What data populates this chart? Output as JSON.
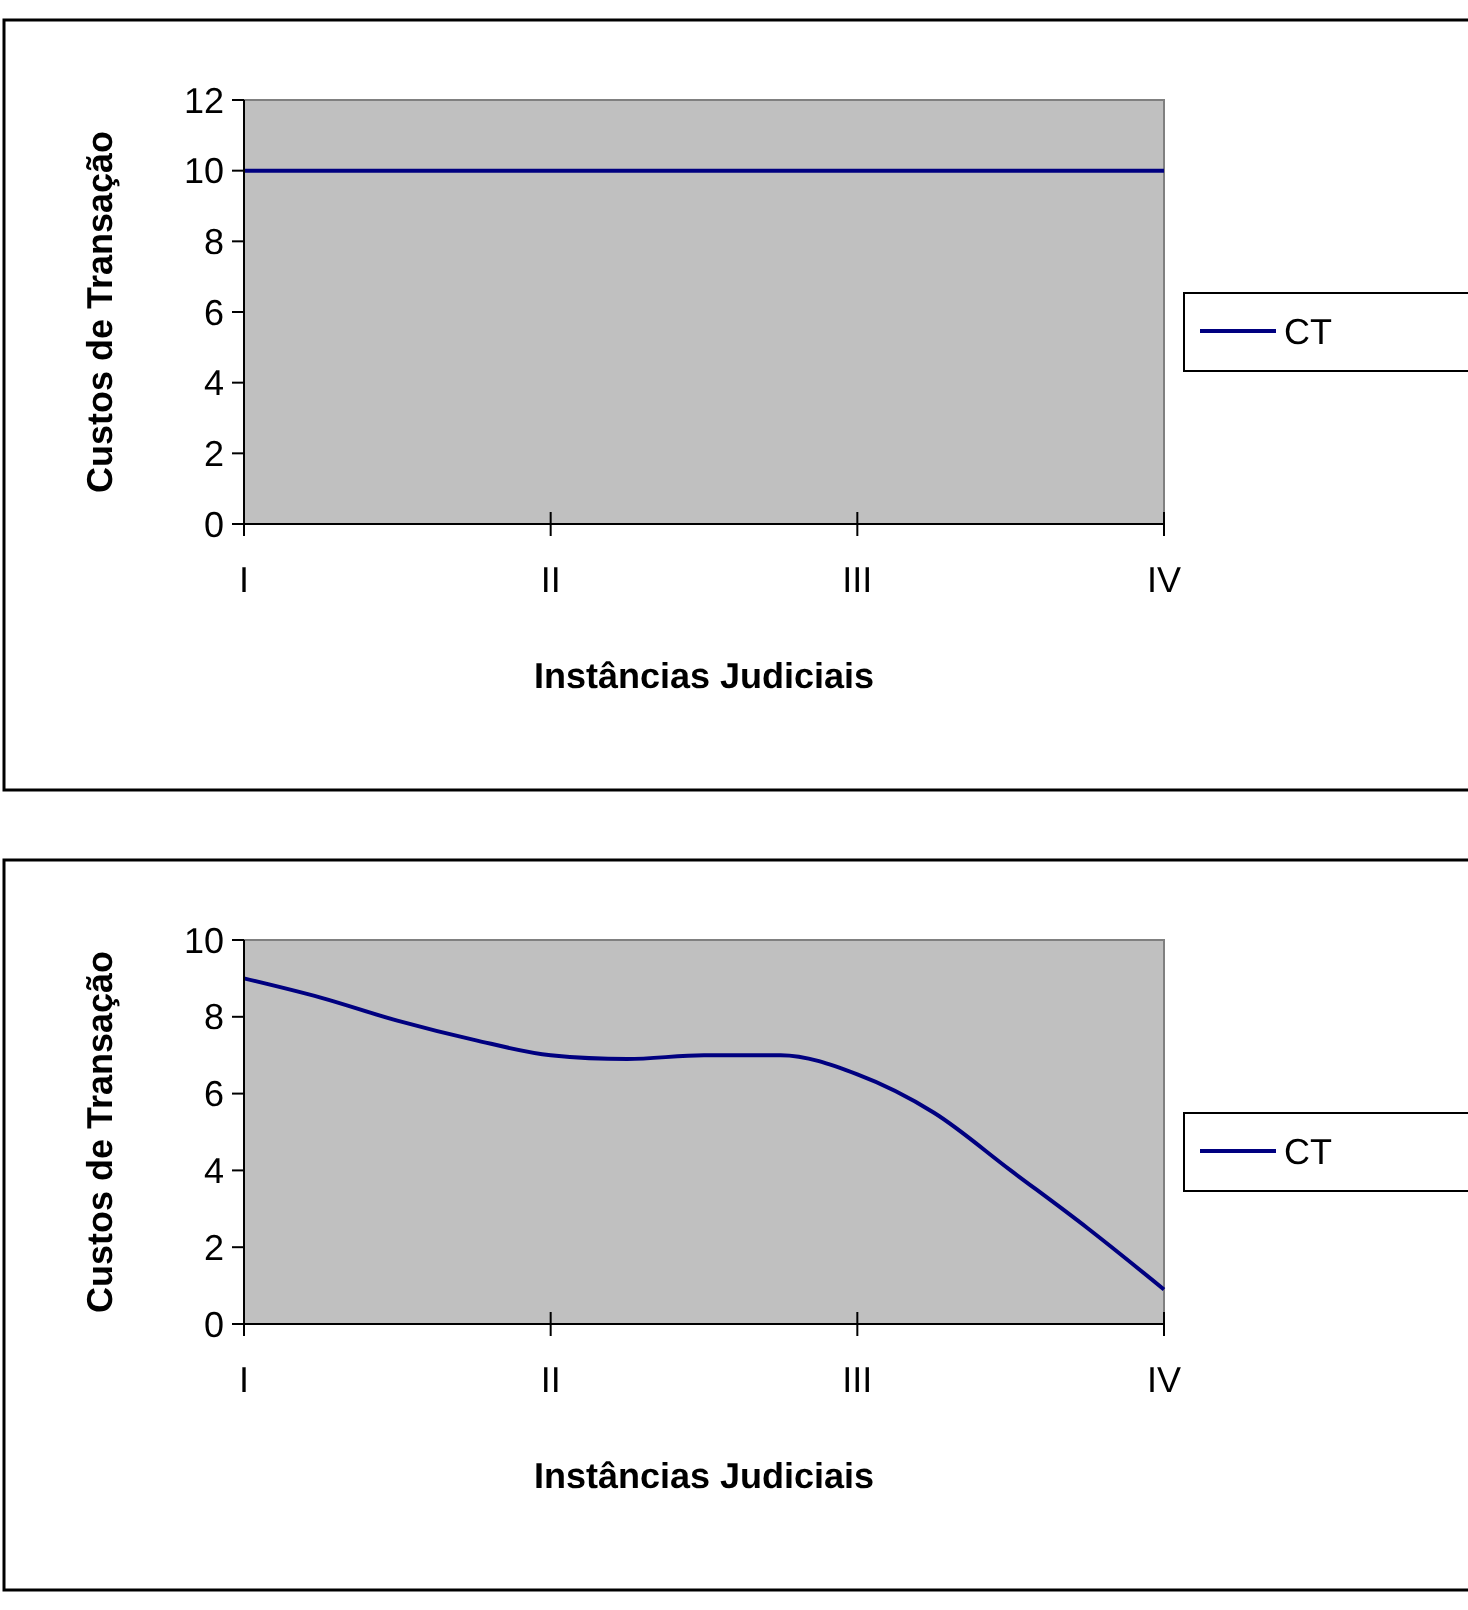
{
  "chart_data": [
    {
      "type": "line",
      "xlabel": "Instâncias Judiciais",
      "ylabel": "Custos de Transação",
      "categories": [
        "I",
        "II",
        "III",
        "IV"
      ],
      "ylim": [
        0,
        12
      ],
      "yticks": [
        0,
        2,
        4,
        6,
        8,
        10,
        12
      ],
      "legend": "right",
      "grid": false,
      "series": [
        {
          "name": "CT",
          "color": "#000080",
          "values": [
            10,
            10,
            10,
            10
          ]
        }
      ]
    },
    {
      "type": "line",
      "xlabel": "Instâncias Judiciais",
      "ylabel": "Custos de Transação",
      "categories": [
        "I",
        null,
        null,
        null,
        "II",
        null,
        null,
        null,
        "III",
        null,
        null,
        null,
        "IV"
      ],
      "ylim": [
        0,
        10
      ],
      "yticks": [
        0,
        2,
        4,
        6,
        8,
        10
      ],
      "legend": "right",
      "grid": false,
      "series": [
        {
          "name": "CT",
          "color": "#000080",
          "values": [
            9.0,
            8.5,
            7.9,
            7.4,
            7.0,
            6.9,
            7.0,
            7.0,
            6.5,
            5.5,
            4.0,
            2.5,
            0.9
          ]
        }
      ]
    }
  ]
}
